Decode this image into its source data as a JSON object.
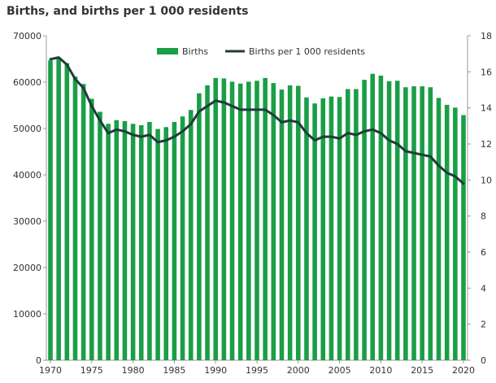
{
  "chart_data": {
    "type": "bar",
    "title": "Births, and births per 1 000 residents",
    "xlabel": "",
    "ylabel": "",
    "x": [
      1970,
      1971,
      1972,
      1973,
      1974,
      1975,
      1976,
      1977,
      1978,
      1979,
      1980,
      1981,
      1982,
      1983,
      1984,
      1985,
      1986,
      1987,
      1988,
      1989,
      1990,
      1991,
      1992,
      1993,
      1994,
      1995,
      1996,
      1997,
      1998,
      1999,
      2000,
      2001,
      2002,
      2003,
      2004,
      2005,
      2006,
      2007,
      2008,
      2009,
      2010,
      2011,
      2012,
      2013,
      2014,
      2015,
      2016,
      2017,
      2018,
      2019,
      2020
    ],
    "series": [
      {
        "name": "Births",
        "axis": "left",
        "kind": "bar",
        "color": "#1a9e46",
        "values": [
          64700,
          65300,
          64100,
          61200,
          59600,
          56400,
          53600,
          51000,
          51800,
          51600,
          51000,
          50700,
          51400,
          49900,
          50300,
          51400,
          52600,
          54000,
          57600,
          59300,
          60900,
          60800,
          60100,
          59700,
          60100,
          60300,
          60900,
          59800,
          58400,
          59300,
          59200,
          56700,
          55400,
          56500,
          56900,
          56800,
          58500,
          58500,
          60500,
          61800,
          61400,
          60200,
          60300,
          58900,
          59100,
          59100,
          58900,
          56600,
          55100,
          54500,
          52900
        ]
      },
      {
        "name": "Births per 1 000 residents",
        "axis": "right",
        "kind": "line",
        "color": "#1f3c3a",
        "values": [
          16.7,
          16.8,
          16.4,
          15.6,
          15.1,
          14.1,
          13.3,
          12.6,
          12.8,
          12.7,
          12.5,
          12.4,
          12.5,
          12.1,
          12.2,
          12.4,
          12.7,
          13.1,
          13.8,
          14.1,
          14.4,
          14.3,
          14.1,
          13.9,
          13.9,
          13.9,
          13.9,
          13.6,
          13.2,
          13.3,
          13.2,
          12.6,
          12.2,
          12.4,
          12.4,
          12.3,
          12.6,
          12.5,
          12.7,
          12.8,
          12.6,
          12.2,
          12.0,
          11.6,
          11.5,
          11.4,
          11.3,
          10.8,
          10.4,
          10.2,
          9.8
        ]
      }
    ],
    "y_left": {
      "min": 0,
      "max": 70000,
      "ticks": [
        0,
        10000,
        20000,
        30000,
        40000,
        50000,
        60000,
        70000
      ]
    },
    "y_right": {
      "min": 0,
      "max": 18,
      "ticks": [
        0,
        2,
        4,
        6,
        8,
        10,
        12,
        14,
        16,
        18
      ]
    },
    "x_ticks": [
      1970,
      1975,
      1980,
      1985,
      1990,
      1995,
      2000,
      2005,
      2010,
      2015,
      2020
    ],
    "grid": false,
    "legend_position": "top-center"
  }
}
